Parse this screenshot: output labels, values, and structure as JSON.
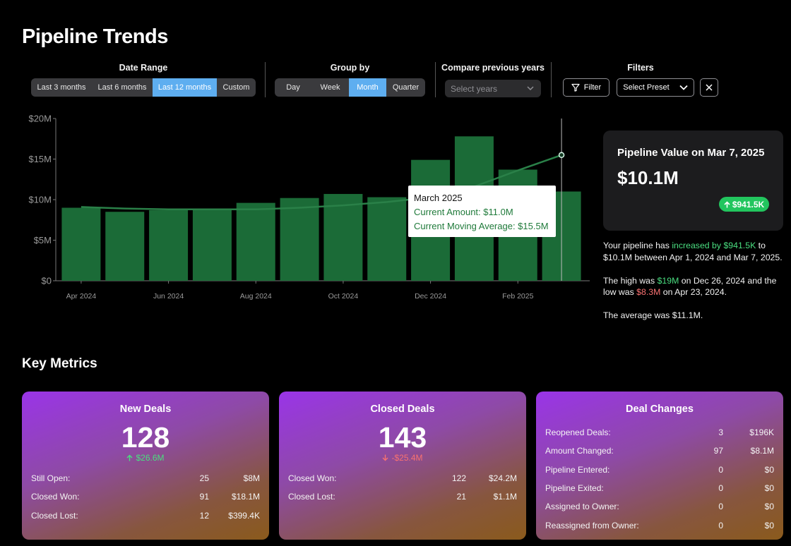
{
  "header": {
    "title": "Pipeline Trends"
  },
  "controls": {
    "date_range": {
      "label": "Date Range",
      "options": [
        "Last 3 months",
        "Last 6 months",
        "Last 12 months",
        "Custom"
      ],
      "selected": 2
    },
    "group_by": {
      "label": "Group by",
      "options": [
        "Day",
        "Week",
        "Month",
        "Quarter"
      ],
      "selected": 2
    },
    "compare": {
      "label": "Compare previous years",
      "placeholder": "Select years"
    },
    "filters": {
      "label": "Filters",
      "filter_button": "Filter",
      "preset": "Select Preset"
    }
  },
  "chart_data": {
    "type": "bar",
    "categories": [
      "Apr 2024",
      null,
      "Jun 2024",
      null,
      "Aug 2024",
      null,
      "Oct 2024",
      null,
      "Dec 2024",
      null,
      "Feb 2025",
      null
    ],
    "series": [
      {
        "type": "bar",
        "color": "#1b6b37",
        "values": [
          9.0,
          8.5,
          8.7,
          8.7,
          9.6,
          10.2,
          10.7,
          10.3,
          14.9,
          17.8,
          13.7,
          11.0
        ]
      },
      {
        "type": "line",
        "color": "#2a8048",
        "values": [
          9.1,
          8.9,
          8.8,
          8.8,
          8.8,
          9.0,
          9.3,
          9.7,
          10.3,
          11.6,
          13.6,
          15.5
        ]
      }
    ],
    "ylim": [
      0,
      20
    ],
    "yticks": [
      {
        "value": 0,
        "label": "$0"
      },
      {
        "value": 5,
        "label": "$5M"
      },
      {
        "value": 10,
        "label": "$10M"
      },
      {
        "value": 15,
        "label": "$15M"
      },
      {
        "value": 20,
        "label": "$20M"
      }
    ],
    "grid": false,
    "tooltip": {
      "title": "March 2025",
      "lines": [
        "Current Amount: $11.0M",
        "Current Moving Average: $15.5M"
      ]
    }
  },
  "summary_card": {
    "title": "Pipeline Value on Mar 7, 2025",
    "value": "$10.1M",
    "change": "$941.5K"
  },
  "summary_text": [
    [
      "Your pipeline has ",
      {
        "text": "increased by $941.5K",
        "color": "#4ade80"
      },
      " to $10.1M between Apr 1, 2024 and Mar 7, 2025."
    ],
    [
      "The high was ",
      {
        "text": "$19M",
        "color": "#4ade80"
      },
      " on Dec 26, 2024 and the low was ",
      {
        "text": "$8.3M",
        "color": "#f87171"
      },
      " on Apr 23, 2024."
    ],
    [
      "The average was $11.1M."
    ]
  ],
  "key_metrics": {
    "title": "Key Metrics",
    "cards": [
      {
        "title": "New Deals",
        "value": 128,
        "change": "$26.6M",
        "direction": "up",
        "rows": [
          {
            "label": "Still Open:",
            "count": 25,
            "amount": "$8M"
          },
          {
            "label": "Closed Won:",
            "count": 91,
            "amount": "$18.1M"
          },
          {
            "label": "Closed Lost:",
            "count": 12,
            "amount": "$399.4K"
          }
        ]
      },
      {
        "title": "Closed Deals",
        "value": 143,
        "change": "-$25.4M",
        "direction": "down",
        "rows": [
          {
            "label": "Closed Won:",
            "count": 122,
            "amount": "$24.2M"
          },
          {
            "label": "Closed Lost:",
            "count": 21,
            "amount": "$1.1M"
          }
        ]
      },
      {
        "title": "Deal Changes",
        "rows": [
          {
            "label": "Reopened Deals:",
            "count": 3,
            "amount": "$196K"
          },
          {
            "label": "Amount Changed:",
            "count": 97,
            "amount": "$8.1M"
          },
          {
            "label": "Pipeline Entered:",
            "count": 0,
            "amount": "$0"
          },
          {
            "label": "Pipeline Exited:",
            "count": 0,
            "amount": "$0"
          },
          {
            "label": "Assigned to Owner:",
            "count": 0,
            "amount": "$0"
          },
          {
            "label": "Reassigned from Owner:",
            "count": 0,
            "amount": "$0"
          }
        ]
      }
    ]
  }
}
